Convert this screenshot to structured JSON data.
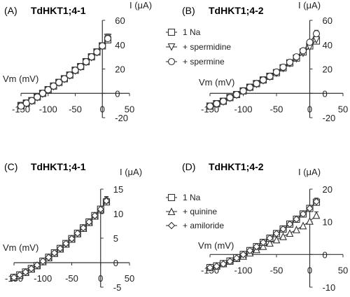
{
  "chart_data": [
    {
      "type": "line",
      "panel": "(A)",
      "title": "TdHKT1;4-1",
      "xlabel": "Vm (mV)",
      "ylabel": "I (μA)",
      "xlim": [
        -150,
        50
      ],
      "ylim": [
        -20,
        60
      ],
      "xticks": [
        -150,
        -100,
        -50,
        0,
        50
      ],
      "yticks": [
        -20,
        0,
        20,
        40,
        60
      ],
      "x": [
        -150,
        -140,
        -130,
        -120,
        -110,
        -100,
        -90,
        -80,
        -70,
        -60,
        -50,
        -40,
        -30,
        -20,
        -10,
        0,
        10
      ],
      "series": [
        {
          "marker": "square",
          "values": [
            -10,
            -8,
            -6,
            -3,
            0,
            3,
            6,
            9,
            12,
            15,
            19,
            22,
            26,
            30,
            34,
            39,
            44
          ]
        },
        {
          "marker": "triangle-down",
          "values": [
            -10.5,
            -8.5,
            -6.5,
            -3.5,
            -0.5,
            2.5,
            5.5,
            8.5,
            11.5,
            14.5,
            18.5,
            21.5,
            25.5,
            29.5,
            33.5,
            38.5,
            46
          ]
        },
        {
          "marker": "circle",
          "values": [
            -10.5,
            -8,
            -6,
            -3,
            0,
            3,
            6,
            9,
            12,
            15,
            19,
            22,
            26,
            30,
            34,
            39,
            45
          ]
        }
      ]
    },
    {
      "type": "line",
      "panel": "(B)",
      "title": "TdHKT1;4-2",
      "xlabel": "Vm (mV)",
      "ylabel": "I (μA)",
      "xlim": [
        -150,
        50
      ],
      "ylim": [
        -20,
        60
      ],
      "xticks": [
        -150,
        -100,
        -50,
        0,
        50
      ],
      "yticks": [
        -20,
        0,
        20,
        40,
        60
      ],
      "x": [
        -150,
        -140,
        -130,
        -120,
        -110,
        -100,
        -90,
        -80,
        -70,
        -60,
        -50,
        -40,
        -30,
        -20,
        -10,
        0,
        10
      ],
      "series": [
        {
          "name": "1 Na",
          "marker": "square",
          "values": [
            -10.5,
            -8.5,
            -6.5,
            -3.5,
            -1,
            2,
            5,
            8,
            11,
            14,
            17,
            21,
            25,
            29,
            34,
            39,
            43
          ]
        },
        {
          "name": "+ spermidine",
          "marker": "triangle-down",
          "values": [
            -10.5,
            -9,
            -7,
            -4,
            -1.5,
            1.5,
            4.5,
            7.5,
            10.5,
            13.5,
            16.5,
            20.5,
            24.5,
            28.5,
            33,
            38,
            44
          ]
        },
        {
          "name": "+ spermine",
          "marker": "circle",
          "values": [
            -10.5,
            -8.5,
            -6.5,
            -3.5,
            -1,
            2,
            5,
            8,
            11,
            14,
            17.5,
            21.5,
            25.5,
            30,
            35,
            42,
            49
          ]
        }
      ]
    },
    {
      "type": "line",
      "panel": "(C)",
      "title": "TdHKT1;4-1",
      "xlabel": "Vm (mV)",
      "ylabel": "I (μA)",
      "xlim": [
        -150,
        50
      ],
      "ylim": [
        -5,
        15
      ],
      "xticks": [
        -150,
        -100,
        -50,
        0,
        50
      ],
      "yticks": [
        -5,
        0,
        5,
        10,
        15
      ],
      "x": [
        -150,
        -140,
        -130,
        -120,
        -110,
        -100,
        -90,
        -80,
        -70,
        -60,
        -50,
        -40,
        -30,
        -20,
        -10,
        0,
        10
      ],
      "series": [
        {
          "marker": "square",
          "values": [
            -3,
            -2.5,
            -1.9,
            -1.2,
            -0.6,
            0.3,
            1.1,
            2,
            2.9,
            3.9,
            4.9,
            6,
            7.1,
            8.3,
            9.6,
            10.9,
            12.4
          ]
        },
        {
          "marker": "triangle-up",
          "values": [
            -3,
            -2.6,
            -2,
            -1.3,
            -0.6,
            0.2,
            1,
            1.9,
            2.8,
            3.8,
            4.8,
            5.9,
            7,
            8.2,
            9.5,
            10.8,
            12.8
          ]
        },
        {
          "marker": "diamond",
          "values": [
            -3,
            -2.5,
            -1.9,
            -1.2,
            -0.5,
            0.3,
            1.1,
            2,
            2.9,
            3.9,
            4.9,
            6,
            7.1,
            8.3,
            9.6,
            10.9,
            12.6
          ]
        }
      ]
    },
    {
      "type": "line",
      "panel": "(D)",
      "title": "TdHKT1;4-2",
      "xlabel": "Vm (mV)",
      "ylabel": "I (μA)",
      "xlim": [
        -150,
        50
      ],
      "ylim": [
        -10,
        20
      ],
      "xticks": [
        -150,
        -100,
        -50,
        0,
        50
      ],
      "yticks": [
        -10,
        0,
        10,
        20
      ],
      "x": [
        -150,
        -140,
        -130,
        -120,
        -110,
        -100,
        -90,
        -80,
        -70,
        -60,
        -50,
        -40,
        -30,
        -20,
        -10,
        0,
        10
      ],
      "series": [
        {
          "name": "1 Na",
          "marker": "square",
          "values": [
            -4,
            -3.5,
            -2.8,
            -2,
            -1,
            0,
            1.2,
            2.4,
            3.7,
            5,
            6.4,
            7.8,
            9.3,
            10.8,
            12.4,
            14.1,
            16
          ]
        },
        {
          "name": "+ quinine",
          "marker": "triangle-up",
          "values": [
            -4,
            -3.5,
            -2.8,
            -2,
            -1.2,
            -0.5,
            0.5,
            1.5,
            2.5,
            3.5,
            4.5,
            5.5,
            6.5,
            7.6,
            8.8,
            10.2,
            12
          ]
        },
        {
          "name": "+ amiloride",
          "marker": "diamond",
          "values": [
            -4,
            -3.6,
            -2.9,
            -2.1,
            -1.1,
            0,
            1.2,
            2.4,
            3.7,
            5,
            6.4,
            7.8,
            9.3,
            10.8,
            12.4,
            14.1,
            16.2
          ]
        }
      ]
    }
  ]
}
